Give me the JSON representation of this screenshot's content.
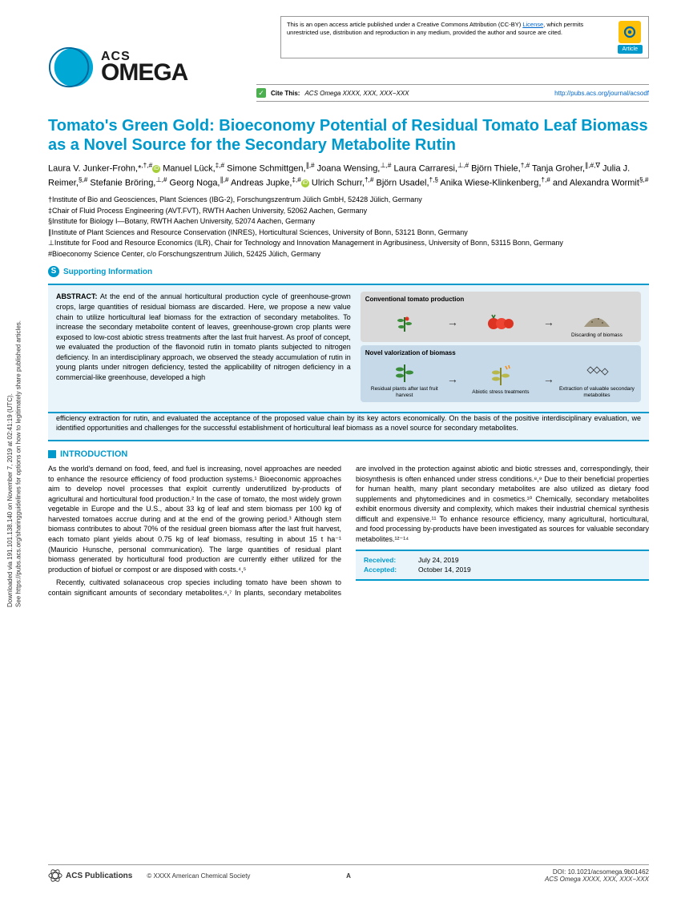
{
  "sidebar": {
    "line1": "Downloaded via 191.101.138.140 on November 7, 2019 at 02:41:19 (UTC).",
    "line2": "See https://pubs.acs.org/sharingguidelines for options on how to legitimately share published articles."
  },
  "topbox": {
    "text_pre": "This is an open access article published under a Creative Commons Attribution (CC-BY) ",
    "license_label": "License",
    "text_post": ", which permits unrestricted use, distribution and reproduction in any medium, provided the author and source are cited.",
    "article_pill": "Article"
  },
  "logo": {
    "acs": "ACS",
    "omega": "OMEGA"
  },
  "cite": {
    "label": "Cite This:",
    "ref": "ACS Omega XXXX, XXX, XXX−XXX",
    "url": "http://pubs.acs.org/journal/acsodf"
  },
  "title": "Tomato's Green Gold: Bioeconomy Potential of Residual Tomato Leaf Biomass as a Novel Source for the Secondary Metabolite Rutin",
  "authors_html": "Laura V. Junker-Frohn,*<sup>,†,#</sup>⊙ Manuel Lück,<sup>‡,#</sup> Simone Schmittgen,<sup>∥,#</sup> Joana Wensing,<sup>⊥,#</sup> Laura Carraresi,<sup>⊥,#</sup> Björn Thiele,<sup>†,#</sup> Tanja Groher,<sup>∥,#,∇</sup> Julia J. Reimer,<sup>§,#</sup> Stefanie Bröring,<sup>⊥,#</sup> Georg Noga,<sup>∥,#</sup> Andreas Jupke,<sup>‡,#</sup>⊙ Ulrich Schurr,<sup>†,#</sup> Björn Usadel,<sup>†,§</sup> Anika Wiese-Klinkenberg,<sup>†,#</sup> and Alexandra Wormit<sup>§,#</sup>",
  "affiliations": [
    "†Institute of Bio and Geosciences, Plant Sciences (IBG-2), Forschungszentrum Jülich GmbH, 52428 Jülich, Germany",
    "‡Chair of Fluid Process Engineering (AVT.FVT), RWTH Aachen University, 52062 Aachen, Germany",
    "§Institute for Biology I—Botany, RWTH Aachen University, 52074 Aachen, Germany",
    "∥Institute of Plant Sciences and Resource Conservation (INRES), Horticultural Sciences, University of Bonn, 53121 Bonn, Germany",
    "⊥Institute for Food and Resource Economics (ILR), Chair for Technology and Innovation Management in Agribusiness, University of Bonn, 53115 Bonn, Germany",
    "#Bioeconomy Science Center, c/o Forschungszentrum Jülich, 52425 Jülich, Germany"
  ],
  "supporting": "Supporting Information",
  "abstract": {
    "label": "ABSTRACT:",
    "left_text": "At the end of the annual horticultural production cycle of greenhouse-grown crops, large quantities of residual biomass are discarded. Here, we propose a new value chain to utilize horticultural leaf biomass for the extraction of secondary metabolites. To increase the secondary metabolite content of leaves, greenhouse-grown crop plants were exposed to low-cost abiotic stress treatments after the last fruit harvest. As proof of concept, we evaluated the production of the flavonoid rutin in tomato plants subjected to nitrogen deficiency. In an interdisciplinary approach, we observed the steady accumulation of rutin in young plants under nitrogen deficiency, tested the applicability of nitrogen deficiency in a commercial-like greenhouse, developed a high",
    "full_width_text": "efficiency extraction for rutin, and evaluated the acceptance of the proposed value chain by its key actors economically. On the basis of the positive interdisciplinary evaluation, we identified opportunities and challenges for the successful establishment of horticultural leaf biomass as a novel source for secondary metabolites.",
    "graphic": {
      "conv_title": "Conventional tomato production",
      "conv_item2": "Discarding of biomass",
      "novel_title": "Novel valorization of biomass",
      "novel_item1": "Residual plants after last fruit harvest",
      "novel_item2": "Abiotic stress treatments",
      "novel_item3": "Extraction of valuable secondary metabolites"
    }
  },
  "section_intro": "INTRODUCTION",
  "intro": {
    "p1": "As the world's demand on food, feed, and fuel is increasing, novel approaches are needed to enhance the resource efficiency of food production systems.¹ Bioeconomic approaches aim to develop novel processes that exploit currently underutilized by-products of agricultural and horticultural food production.² In the case of tomato, the most widely grown vegetable in Europe and the U.S., about 33 kg of leaf and stem biomass per 100 kg of harvested tomatoes accrue during and at the end of the growing period.³ Although stem biomass contributes to about 70% of the residual green biomass after the last fruit harvest, each tomato plant yields about 0.75 kg of leaf biomass, resulting in about 15 t ha⁻¹ (Mauricio Hunsche, personal communication). The large quantities of residual plant biomass generated by horticultural food production are currently either utilized for the production of biofuel or compost or are disposed with costs.⁴,⁵",
    "p2": "Recently, cultivated solanaceous crop species including tomato have been shown to contain significant amounts of secondary metabolites.⁶,⁷ In plants, secondary metabolites are involved in the protection against abiotic and biotic stresses and, correspondingly, their biosynthesis is often enhanced under stress conditions.⁸,⁹ Due to their beneficial properties for human health, many plant secondary metabolites are also utilized as dietary food supplements and phytomedicines and in cosmetics.¹⁰ Chemically, secondary metabolites exhibit enormous diversity and complexity, which makes their industrial chemical synthesis difficult and expensive.¹¹ To enhance resource efficiency, many agricultural, horticultural, and food processing by-products have been investigated as sources for valuable secondary metabolites.¹²⁻¹⁴"
  },
  "dates": {
    "received_lbl": "Received:",
    "received": "July 24, 2019",
    "accepted_lbl": "Accepted:",
    "accepted": "October 14, 2019"
  },
  "footer": {
    "publisher": "ACS Publications",
    "copyright": "© XXXX American Chemical Society",
    "page": "A",
    "doi": "DOI: 10.1021/acsomega.9b01462",
    "ref": "ACS Omega XXXX, XXX, XXX−XXX"
  },
  "colors": {
    "acs_blue": "#0099cc",
    "abstract_bg": "#e8f4f9",
    "open_badge": "#ffc107",
    "orcid": "#a6ce39"
  }
}
